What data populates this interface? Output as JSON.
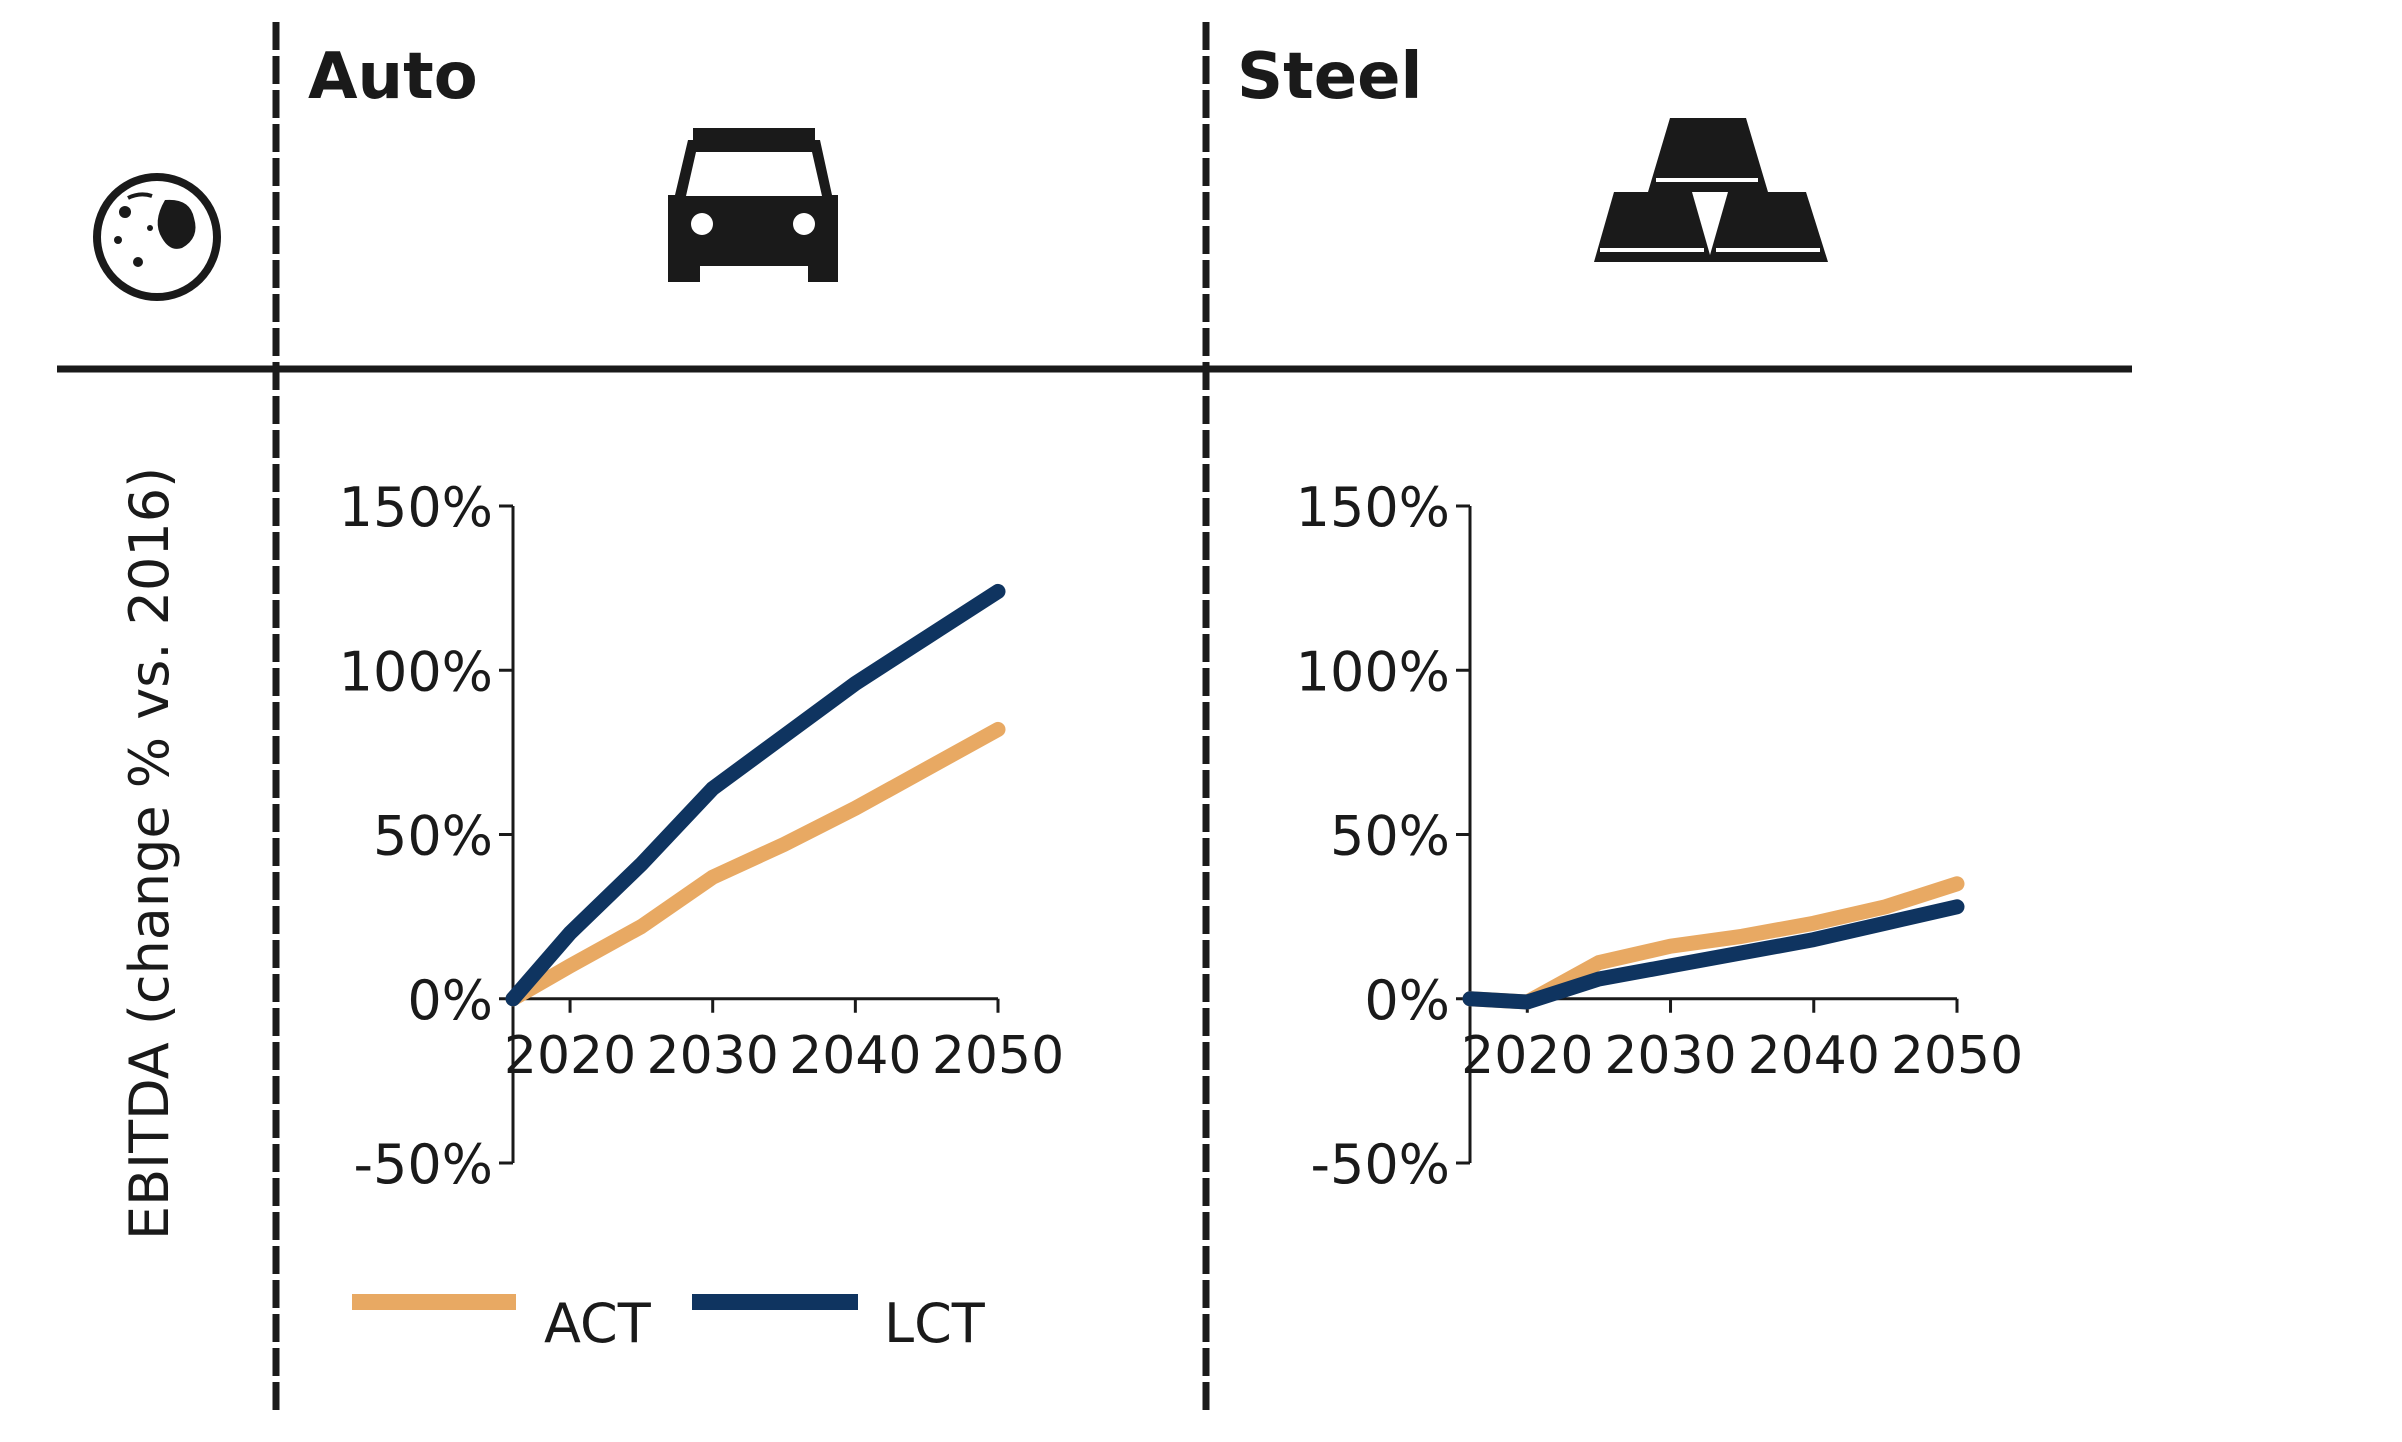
{
  "row_label": "EBITDA (change % vs. 2016)",
  "legend": [
    {
      "label": "ACT",
      "color": "#E8A963"
    },
    {
      "label": "LCT",
      "color": "#0F3460"
    }
  ],
  "icons": {
    "row_icon": "globe-icon",
    "auto_icon": "car-icon",
    "steel_icon": "steel-ingots-icon"
  },
  "chart_data": [
    {
      "type": "line",
      "title": "Auto",
      "xlabel": "",
      "ylabel": "EBITDA (change % vs. 2016)",
      "xlim": [
        2016,
        2050
      ],
      "ylim": [
        -50,
        150
      ],
      "x_ticks": [
        2020,
        2030,
        2040,
        2050
      ],
      "x_tick_labels": [
        "2020",
        "2030",
        "2040",
        "2050"
      ],
      "y_ticks": [
        -50,
        0,
        50,
        100,
        150
      ],
      "y_tick_labels": [
        "-50%",
        "0%",
        "50%",
        "100%",
        "150%"
      ],
      "grid": false,
      "series": [
        {
          "name": "ACT",
          "color": "#E8A963",
          "points": [
            [
              2016,
              0
            ],
            [
              2020,
              10
            ],
            [
              2025,
              22
            ],
            [
              2030,
              37
            ],
            [
              2035,
              47
            ],
            [
              2040,
              58
            ],
            [
              2045,
              70
            ],
            [
              2050,
              82
            ]
          ]
        },
        {
          "name": "LCT",
          "color": "#0F3460",
          "points": [
            [
              2016,
              0
            ],
            [
              2020,
              20
            ],
            [
              2025,
              41
            ],
            [
              2030,
              64
            ],
            [
              2035,
              80
            ],
            [
              2040,
              96
            ],
            [
              2045,
              110
            ],
            [
              2050,
              124
            ]
          ]
        }
      ]
    },
    {
      "type": "line",
      "title": "Steel",
      "xlabel": "",
      "ylabel": "",
      "xlim": [
        2016,
        2050
      ],
      "ylim": [
        -50,
        150
      ],
      "x_ticks": [
        2020,
        2030,
        2040,
        2050
      ],
      "x_tick_labels": [
        "2020",
        "2030",
        "2040",
        "2050"
      ],
      "y_ticks": [
        -50,
        0,
        50,
        100,
        150
      ],
      "y_tick_labels": [
        "-50%",
        "0%",
        "50%",
        "100%",
        "150%"
      ],
      "grid": false,
      "series": [
        {
          "name": "ACT",
          "color": "#E8A963",
          "points": [
            [
              2016,
              0
            ],
            [
              2020,
              -1
            ],
            [
              2025,
              11
            ],
            [
              2030,
              16
            ],
            [
              2035,
              19
            ],
            [
              2040,
              23
            ],
            [
              2045,
              28
            ],
            [
              2050,
              35
            ]
          ]
        },
        {
          "name": "LCT",
          "color": "#0F3460",
          "points": [
            [
              2016,
              0
            ],
            [
              2020,
              -1
            ],
            [
              2025,
              6
            ],
            [
              2030,
              10
            ],
            [
              2035,
              14
            ],
            [
              2040,
              18
            ],
            [
              2045,
              23
            ],
            [
              2050,
              28
            ]
          ]
        }
      ]
    }
  ]
}
